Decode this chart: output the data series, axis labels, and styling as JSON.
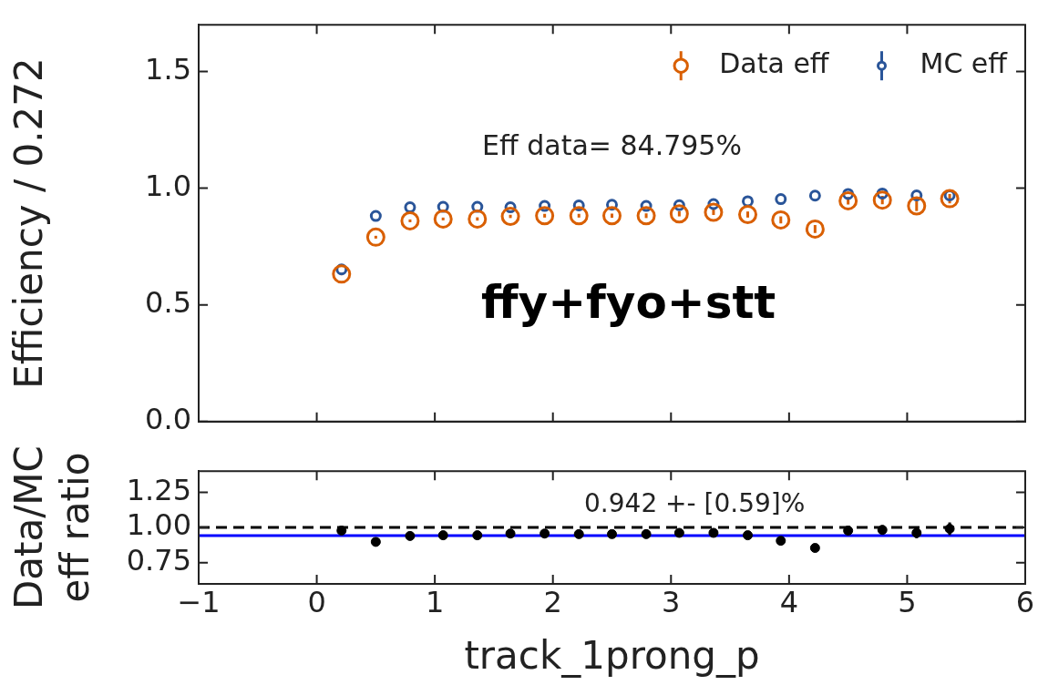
{
  "chart_data": [
    {
      "type": "scatter",
      "ylabel": "Efficiency / 0.272",
      "x": [
        0.21,
        0.5,
        0.79,
        1.07,
        1.36,
        1.64,
        1.93,
        2.22,
        2.5,
        2.79,
        3.07,
        3.36,
        3.65,
        3.93,
        4.22,
        4.5,
        4.79,
        5.08,
        5.36
      ],
      "xlim": [
        -1,
        6
      ],
      "ylim": [
        0,
        1.7
      ],
      "yticks": [
        {
          "value": 0,
          "label": "0.0"
        },
        {
          "value": 0.5,
          "label": "0.5"
        },
        {
          "value": 1,
          "label": "1.0"
        },
        {
          "value": 1.5,
          "label": "1.5"
        }
      ],
      "tick_labels": "y",
      "legend": "top right",
      "marker": "circle",
      "grid": false,
      "annotations": [
        "Eff data= 84.795%",
        "ffy+fyo+stt"
      ],
      "series": [
        {
          "name": "Data eff",
          "color": "#d95f02",
          "values": [
            0.632,
            0.79,
            0.86,
            0.868,
            0.868,
            0.879,
            0.882,
            0.882,
            0.882,
            0.882,
            0.89,
            0.897,
            0.887,
            0.864,
            0.825,
            0.946,
            0.949,
            0.924,
            0.955
          ],
          "errors": [
            0.005,
            0.006,
            0.006,
            0.006,
            0.007,
            0.007,
            0.008,
            0.008,
            0.009,
            0.01,
            0.011,
            0.012,
            0.013,
            0.015,
            0.017,
            0.016,
            0.018,
            0.022,
            0.02
          ]
        },
        {
          "name": "MC eff",
          "color": "#2a5599",
          "values": [
            0.652,
            0.881,
            0.918,
            0.92,
            0.92,
            0.918,
            0.924,
            0.926,
            0.929,
            0.924,
            0.927,
            0.932,
            0.944,
            0.953,
            0.968,
            0.975,
            0.977,
            0.969,
            0.969
          ]
        }
      ]
    },
    {
      "type": "scatter",
      "ylabel": "Data/MC\neff ratio",
      "xlabel": "track_1prong_p",
      "x": [
        0.21,
        0.5,
        0.79,
        1.07,
        1.36,
        1.64,
        1.93,
        2.22,
        2.5,
        2.79,
        3.07,
        3.36,
        3.65,
        3.93,
        4.22,
        4.5,
        4.79,
        5.08,
        5.36
      ],
      "xlim": [
        -1,
        6
      ],
      "xticks": [
        {
          "value": -1,
          "label": "−1"
        },
        0,
        1,
        2,
        3,
        4,
        5,
        6
      ],
      "ylim": [
        0.6,
        1.4
      ],
      "yticks": [
        {
          "value": 0.75,
          "label": "0.75"
        },
        {
          "value": 1,
          "label": "1.00"
        },
        {
          "value": 1.25,
          "label": "1.25"
        }
      ],
      "marker": "circle",
      "grid": false,
      "annotations": [
        "0.942 +- [0.59]%"
      ],
      "ref_lines": [
        {
          "axis": "y",
          "value": 1,
          "color": "#000000",
          "line_style": "dashed"
        },
        {
          "axis": "y",
          "value": 0.942,
          "color": "#0000ff",
          "line_style": "solid"
        }
      ],
      "series": [
        {
          "color": "#000000",
          "values": [
            0.978,
            0.898,
            0.94,
            0.945,
            0.945,
            0.957,
            0.957,
            0.953,
            0.953,
            0.953,
            0.962,
            0.962,
            0.945,
            0.906,
            0.855,
            0.978,
            0.983,
            0.962,
            0.991
          ],
          "errors": [
            0.008,
            0.008,
            0.008,
            0.009,
            0.01,
            0.011,
            0.012,
            0.013,
            0.014,
            0.015,
            0.017,
            0.019,
            0.022,
            0.024,
            0.027,
            0.03,
            0.033,
            0.038,
            0.045
          ]
        }
      ]
    }
  ]
}
